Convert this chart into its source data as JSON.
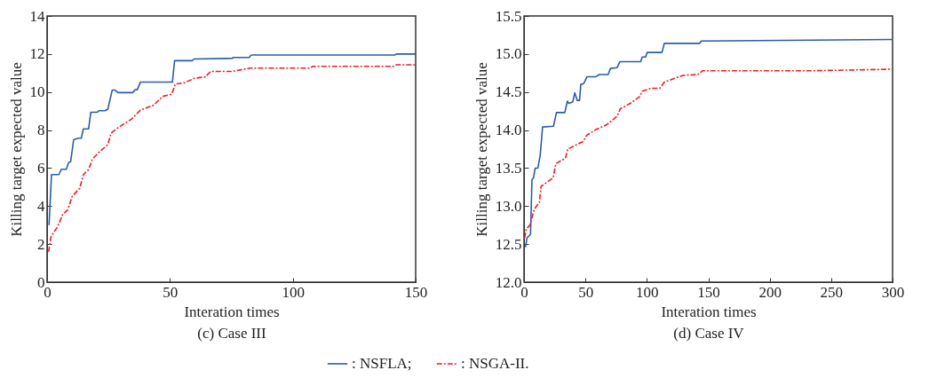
{
  "chart_data": [
    {
      "type": "line",
      "title": "(c) Case III",
      "xlabel": "Interation times",
      "ylabel": "Killing target expected value",
      "xlim": [
        0,
        150
      ],
      "xticks": [
        0,
        50,
        100,
        150
      ],
      "ylim": [
        0,
        14
      ],
      "yticks": [
        0,
        2,
        4,
        6,
        8,
        10,
        12,
        14
      ],
      "grid": false,
      "legend": "bottom",
      "series": [
        {
          "name": ": NSFLA;",
          "color": "#2a5caa",
          "line_style": "solid",
          "x": [
            0.8,
            1.8,
            4.8,
            5.8,
            7.8,
            8.8,
            9.6,
            10.8,
            12.7,
            13.9,
            14.8,
            16.9,
            17.8,
            20.5,
            21.1,
            23.5,
            24.7,
            26.5,
            27.7,
            28.9,
            34.9,
            35.8,
            36.7,
            38,
            51,
            51.9,
            59,
            59.9,
            75.3,
            75.9,
            82.2,
            83.1,
            141.6,
            142.2,
            150
          ],
          "values": [
            3.0,
            5.66,
            5.66,
            5.94,
            5.94,
            6.3,
            6.34,
            7.49,
            7.57,
            7.57,
            8.06,
            8.06,
            8.94,
            8.94,
            9.02,
            9.02,
            9.09,
            10.1,
            10.1,
            9.97,
            9.97,
            10.12,
            10.12,
            10.52,
            10.52,
            11.65,
            11.65,
            11.74,
            11.77,
            11.82,
            11.82,
            11.95,
            11.95,
            12.0,
            12.0
          ]
        },
        {
          "name": ": NSGA-II.",
          "color": "#ee1c25",
          "line_style": "dashed",
          "x": [
            0.6,
            1.6,
            4.2,
            6.4,
            8.4,
            10.2,
            13.3,
            14.8,
            16.9,
            18.4,
            21.1,
            24.7,
            26.1,
            29.5,
            34.3,
            38,
            43.4,
            47,
            50.7,
            52.2,
            56,
            59.9,
            64.5,
            66.5,
            75.3,
            82.5,
            107.2,
            108,
            141,
            142.2,
            150
          ],
          "values": [
            1.6,
            2.4,
            2.9,
            3.57,
            3.8,
            4.5,
            4.95,
            5.66,
            5.92,
            6.46,
            6.83,
            7.23,
            7.85,
            8.18,
            8.57,
            9.05,
            9.31,
            9.77,
            9.88,
            10.42,
            10.49,
            10.72,
            10.8,
            11.08,
            11.08,
            11.26,
            11.26,
            11.35,
            11.35,
            11.43,
            11.43
          ]
        }
      ]
    },
    {
      "type": "line",
      "title": "(d) Case IV",
      "xlabel": "Interation times",
      "ylabel": "Killing target expected value",
      "xlim": [
        0,
        300
      ],
      "xticks": [
        0,
        50,
        100,
        150,
        200,
        250,
        300
      ],
      "ylim": [
        12,
        15.5
      ],
      "yticks": [
        {
          "value": 12,
          "label": "12.0"
        },
        {
          "value": 12.5,
          "label": "12.5"
        },
        {
          "value": 13,
          "label": "13.0"
        },
        {
          "value": 13.5,
          "label": "13.5"
        },
        {
          "value": 14,
          "label": "14.0"
        },
        {
          "value": 14.5,
          "label": "14.5"
        },
        {
          "value": 15,
          "label": "15.0"
        },
        {
          "value": 15.5,
          "label": "15.5"
        }
      ],
      "grid": false,
      "series": [
        {
          "color": "#2a5caa",
          "line_style": "solid",
          "x": [
            1.2,
            2.4,
            5.3,
            6.5,
            7.7,
            9.1,
            11.3,
            13.2,
            15.1,
            24,
            26.4,
            33.2,
            35.3,
            36.5,
            39.7,
            41.3,
            43.3,
            45.2,
            46.2,
            48.6,
            51.2,
            58.2,
            61.3,
            68.5,
            70.4,
            75.7,
            78.1,
            95,
            96.2,
            99,
            100.2,
            112.3,
            114.2,
            143,
            144.2,
            300
          ],
          "values": [
            12.46,
            12.58,
            12.63,
            13.35,
            13.37,
            13.5,
            13.5,
            13.67,
            14.04,
            14.05,
            14.23,
            14.23,
            14.38,
            14.35,
            14.37,
            14.49,
            14.39,
            14.39,
            14.6,
            14.61,
            14.7,
            14.7,
            14.73,
            14.73,
            14.81,
            14.82,
            14.9,
            14.9,
            14.96,
            14.96,
            15.02,
            15.02,
            15.14,
            15.14,
            15.17,
            15.19
          ]
        },
        {
          "color": "#ee1c25",
          "line_style": "dashed",
          "x": [
            0.5,
            1.9,
            4.8,
            8.4,
            12.5,
            13.9,
            23.6,
            26,
            33.7,
            35.6,
            48.1,
            51,
            57.7,
            67.3,
            75.7,
            78.4,
            86.5,
            94.2,
            96.2,
            103.4,
            110.6,
            114.2,
            122.6,
            129.8,
            141.8,
            145.4,
            235.6,
            300
          ],
          "values": [
            12.58,
            12.7,
            12.75,
            12.96,
            13.05,
            13.26,
            13.37,
            13.56,
            13.63,
            13.75,
            13.85,
            13.93,
            14.0,
            14.07,
            14.18,
            14.28,
            14.35,
            14.44,
            14.51,
            14.55,
            14.55,
            14.63,
            14.68,
            14.72,
            14.73,
            14.78,
            14.78,
            14.8
          ]
        }
      ]
    }
  ]
}
